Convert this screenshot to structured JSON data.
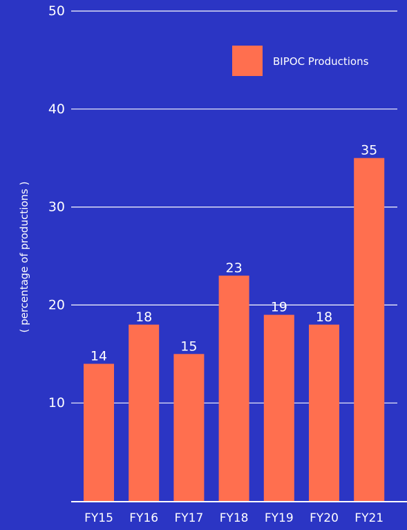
{
  "colors": {
    "background": "#2b35c4",
    "bar": "#ff6f4f",
    "grid": "#ffffff",
    "text": "#ffffff"
  },
  "chart_data": {
    "type": "bar",
    "title": "",
    "xlabel": "",
    "ylabel": "( percentage of productions )",
    "categories": [
      "FY15",
      "FY16",
      "FY17",
      "FY18",
      "FY19",
      "FY20",
      "FY21"
    ],
    "series": [
      {
        "name": "BIPOC Productions",
        "values": [
          14,
          18,
          15,
          23,
          19,
          18,
          35
        ]
      }
    ],
    "ylim": [
      0,
      50
    ],
    "yticks": [
      10,
      20,
      30,
      40,
      50
    ],
    "grid": true,
    "legend": "top-right",
    "data_labels": true
  }
}
